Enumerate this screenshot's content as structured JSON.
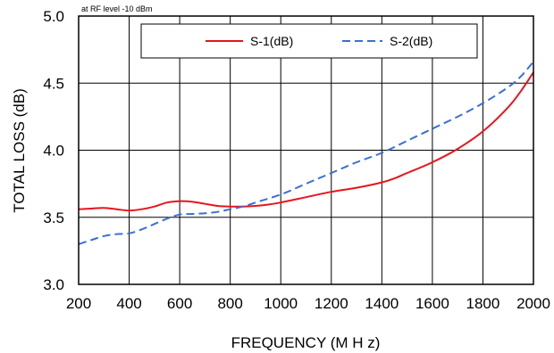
{
  "chart_data": {
    "type": "line",
    "title": "",
    "annotation": "at RF level -10 dBm",
    "xlabel": "FREQUENCY (M H z)",
    "ylabel": "TOTAL LOSS (dB)",
    "xlim": [
      200,
      2000
    ],
    "ylim": [
      3.0,
      5.0
    ],
    "x_ticks": [
      200,
      400,
      600,
      800,
      1000,
      1200,
      1400,
      1600,
      1800,
      2000
    ],
    "y_ticks": [
      "3.0",
      "3.5",
      "4.0",
      "4.5",
      "5.0"
    ],
    "grid": true,
    "legend_position": "top",
    "series": [
      {
        "name": "S-1(dB)",
        "color": "#e8141c",
        "dash": "solid",
        "points": [
          [
            200,
            3.56
          ],
          [
            250,
            3.565
          ],
          [
            300,
            3.57
          ],
          [
            350,
            3.56
          ],
          [
            400,
            3.55
          ],
          [
            450,
            3.56
          ],
          [
            500,
            3.58
          ],
          [
            550,
            3.61
          ],
          [
            600,
            3.62
          ],
          [
            650,
            3.615
          ],
          [
            700,
            3.6
          ],
          [
            750,
            3.585
          ],
          [
            800,
            3.58
          ],
          [
            850,
            3.58
          ],
          [
            900,
            3.585
          ],
          [
            950,
            3.595
          ],
          [
            1000,
            3.61
          ],
          [
            1100,
            3.65
          ],
          [
            1200,
            3.69
          ],
          [
            1300,
            3.72
          ],
          [
            1400,
            3.76
          ],
          [
            1450,
            3.79
          ],
          [
            1500,
            3.83
          ],
          [
            1600,
            3.91
          ],
          [
            1700,
            4.01
          ],
          [
            1800,
            4.14
          ],
          [
            1900,
            4.32
          ],
          [
            1950,
            4.44
          ],
          [
            2000,
            4.58
          ]
        ]
      },
      {
        "name": "S-2(dB)",
        "color": "#3a6fd8",
        "dash": "dashed",
        "points": [
          [
            200,
            3.3
          ],
          [
            250,
            3.33
          ],
          [
            300,
            3.36
          ],
          [
            350,
            3.375
          ],
          [
            400,
            3.38
          ],
          [
            450,
            3.41
          ],
          [
            500,
            3.45
          ],
          [
            550,
            3.49
          ],
          [
            600,
            3.52
          ],
          [
            650,
            3.525
          ],
          [
            700,
            3.53
          ],
          [
            750,
            3.54
          ],
          [
            800,
            3.56
          ],
          [
            850,
            3.58
          ],
          [
            900,
            3.61
          ],
          [
            1000,
            3.67
          ],
          [
            1100,
            3.75
          ],
          [
            1200,
            3.83
          ],
          [
            1300,
            3.91
          ],
          [
            1400,
            3.98
          ],
          [
            1500,
            4.07
          ],
          [
            1600,
            4.16
          ],
          [
            1700,
            4.25
          ],
          [
            1800,
            4.35
          ],
          [
            1900,
            4.47
          ],
          [
            1950,
            4.55
          ],
          [
            2000,
            4.66
          ]
        ]
      }
    ]
  }
}
